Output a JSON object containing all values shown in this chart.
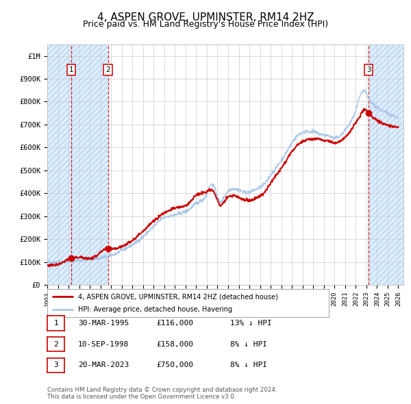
{
  "title": "4, ASPEN GROVE, UPMINSTER, RM14 2HZ",
  "subtitle": "Price paid vs. HM Land Registry's House Price Index (HPI)",
  "title_fontsize": 11,
  "subtitle_fontsize": 9,
  "hpi_color": "#aac8e8",
  "price_color": "#cc0000",
  "dot_color": "#cc0000",
  "background_color": "#ffffff",
  "grid_color": "#cccccc",
  "hatch_color": "#ddeeff",
  "ylim": [
    0,
    1050000
  ],
  "xlim_start": 1993.0,
  "xlim_end": 2026.5,
  "yticks": [
    0,
    100000,
    200000,
    300000,
    400000,
    500000,
    600000,
    700000,
    800000,
    900000,
    1000000
  ],
  "ytick_labels": [
    "£0",
    "£100K",
    "£200K",
    "£300K",
    "£400K",
    "£500K",
    "£600K",
    "£700K",
    "£800K",
    "£900K",
    "£1M"
  ],
  "xticks": [
    1993,
    1994,
    1995,
    1996,
    1997,
    1998,
    1999,
    2000,
    2001,
    2002,
    2003,
    2004,
    2005,
    2006,
    2007,
    2008,
    2009,
    2010,
    2011,
    2012,
    2013,
    2014,
    2015,
    2016,
    2017,
    2018,
    2019,
    2020,
    2021,
    2022,
    2023,
    2024,
    2025,
    2026
  ],
  "sale_points": [
    {
      "num": 1,
      "year": 1995.25,
      "price": 116000,
      "label": "1",
      "date": "30-MAR-1995",
      "hpi_pct": "13% ↓ HPI"
    },
    {
      "num": 2,
      "year": 1998.7,
      "price": 158000,
      "label": "2",
      "date": "10-SEP-1998",
      "hpi_pct": "8% ↓ HPI"
    },
    {
      "num": 3,
      "year": 2023.22,
      "price": 750000,
      "label": "3",
      "date": "20-MAR-2023",
      "hpi_pct": "8% ↓ HPI"
    }
  ],
  "legend_entries": [
    {
      "color": "#cc0000",
      "label": "4, ASPEN GROVE, UPMINSTER, RM14 2HZ (detached house)"
    },
    {
      "color": "#aac8e8",
      "label": "HPI: Average price, detached house, Havering"
    }
  ],
  "table_rows": [
    {
      "num": "1",
      "date": "30-MAR-1995",
      "price": "£116,000",
      "hpi": "13% ↓ HPI"
    },
    {
      "num": "2",
      "date": "10-SEP-1998",
      "price": "£158,000",
      "hpi": "8% ↓ HPI"
    },
    {
      "num": "3",
      "date": "20-MAR-2023",
      "price": "£750,000",
      "hpi": "8% ↓ HPI"
    }
  ],
  "footnote": "Contains HM Land Registry data © Crown copyright and database right 2024.\nThis data is licensed under the Open Government Licence v3.0."
}
